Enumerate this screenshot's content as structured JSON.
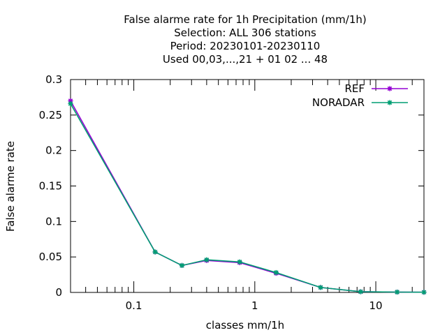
{
  "chart_data": {
    "type": "line",
    "title_lines": [
      "False alarme rate  for 1h Precipitation (mm/1h)",
      "Selection: ALL    306 stations",
      "Period: 20230101-20230110",
      "Used  00,03,...,21  + 01 02 ... 48"
    ],
    "xlabel": "classes mm/1h",
    "ylabel": "False alarme rate",
    "x_scale": "log",
    "xlim": [
      0.03,
      25
    ],
    "ylim": [
      0,
      0.3
    ],
    "x_ticks": [
      {
        "value": 0.1,
        "label": "0.1"
      },
      {
        "value": 1,
        "label": "1"
      },
      {
        "value": 10,
        "label": "10"
      }
    ],
    "y_ticks": [
      {
        "value": 0,
        "label": "0"
      },
      {
        "value": 0.05,
        "label": "0.05"
      },
      {
        "value": 0.1,
        "label": "0.1"
      },
      {
        "value": 0.15,
        "label": "0.15"
      },
      {
        "value": 0.2,
        "label": "0.2"
      },
      {
        "value": 0.25,
        "label": "0.25"
      },
      {
        "value": 0.3,
        "label": "0.3"
      }
    ],
    "grid": false,
    "legend_position": "top-right",
    "x": [
      0.03,
      0.15,
      0.25,
      0.4,
      0.75,
      1.5,
      3.5,
      7.5,
      15,
      25
    ],
    "series": [
      {
        "name": "REF",
        "color": "#9400d3",
        "values": [
          0.27,
          0.057,
          0.038,
          0.045,
          0.042,
          0.027,
          0.007,
          0.001,
          0.0005,
          0.0003
        ]
      },
      {
        "name": "NORADAR",
        "color": "#009e73",
        "values": [
          0.266,
          0.057,
          0.038,
          0.046,
          0.043,
          0.028,
          0.007,
          0.001,
          0.0005,
          0.0003
        ]
      }
    ]
  }
}
